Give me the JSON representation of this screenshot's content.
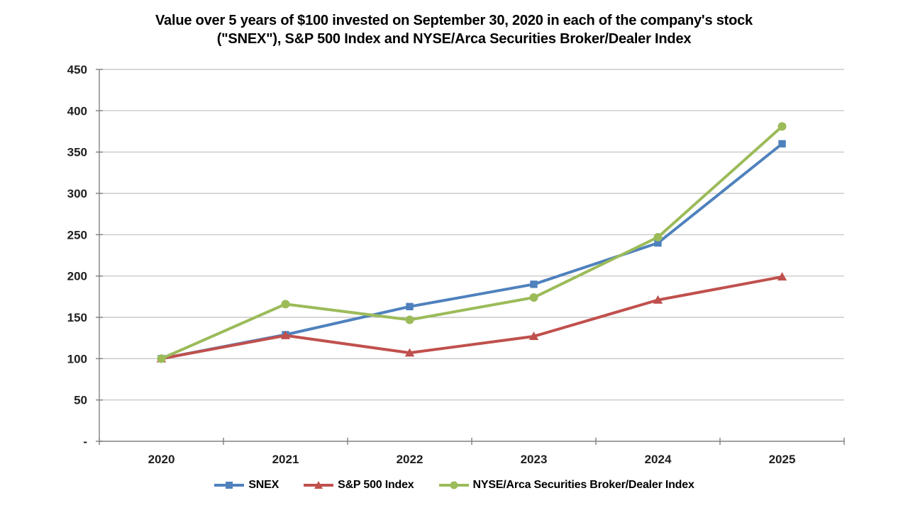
{
  "chart_data": {
    "type": "line",
    "title_line1": "Value over 5 years of $100 invested on September 30, 2020 in each of the company's stock",
    "title_line2": "(\"SNEX\"), S&P 500 Index and NYSE/Arca Securities Broker/Dealer Index",
    "categories": [
      "2020",
      "2021",
      "2022",
      "2023",
      "2024",
      "2025"
    ],
    "series": [
      {
        "name": "SNEX",
        "color": "#4F81BD",
        "marker": "square",
        "values": [
          100,
          129,
          163,
          190,
          240,
          360
        ]
      },
      {
        "name": "S&P 500 Index",
        "color": "#C0504D",
        "marker": "triangle",
        "values": [
          100,
          128,
          107,
          127,
          171,
          199
        ]
      },
      {
        "name": "NYSE/Arca Securities Broker/Dealer Index",
        "color": "#9BBB59",
        "marker": "circle",
        "values": [
          100,
          166,
          147,
          174,
          247,
          381
        ]
      }
    ],
    "ylim": [
      0,
      450
    ],
    "y_ticks": [
      {
        "value": 0,
        "label": "-"
      },
      {
        "value": 50,
        "label": "50"
      },
      {
        "value": 100,
        "label": "100"
      },
      {
        "value": 150,
        "label": "150"
      },
      {
        "value": 200,
        "label": "200"
      },
      {
        "value": 250,
        "label": "250"
      },
      {
        "value": 300,
        "label": "300"
      },
      {
        "value": 350,
        "label": "350"
      },
      {
        "value": 400,
        "label": "400"
      },
      {
        "value": 450,
        "label": "450"
      }
    ],
    "grid": true,
    "legend_position": "bottom",
    "colors": {
      "axis": "#808080",
      "gridline": "#BFBFBF",
      "tick_label": "#1f1f1f",
      "title": "#000000",
      "background": "#ffffff"
    }
  }
}
